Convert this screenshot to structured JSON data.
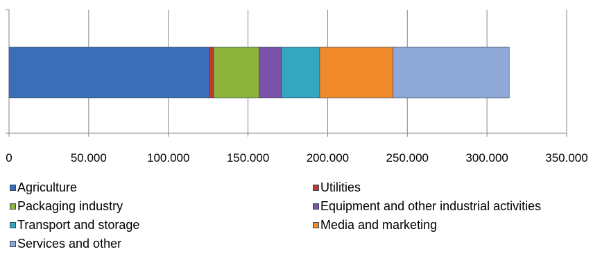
{
  "chart_data": {
    "type": "bar",
    "orientation": "horizontal",
    "stacked": true,
    "categories": [
      ""
    ],
    "xlim": [
      0,
      350000
    ],
    "xticks": [
      0,
      50000,
      100000,
      150000,
      200000,
      250000,
      300000,
      350000
    ],
    "xtick_labels": [
      "0",
      "50.000",
      "100.000",
      "150.000",
      "200.000",
      "250.000",
      "300.000",
      "350.000"
    ],
    "grid": "vertical",
    "legend_position": "bottom",
    "series": [
      {
        "name": "Agriculture",
        "values": [
          126000
        ],
        "color": "#3a6fb8"
      },
      {
        "name": "Utilities",
        "values": [
          2500
        ],
        "color": "#c0392b"
      },
      {
        "name": "Packaging industry",
        "values": [
          28500
        ],
        "color": "#8db33a"
      },
      {
        "name": "Equipment and other industrial activities",
        "values": [
          14000
        ],
        "color": "#7b52a8"
      },
      {
        "name": "Transport and storage",
        "values": [
          24000
        ],
        "color": "#34a7c0"
      },
      {
        "name": "Media and marketing",
        "values": [
          46000
        ],
        "color": "#f18a2b"
      },
      {
        "name": "Services and other",
        "values": [
          73000
        ],
        "color": "#8fa9d6"
      }
    ]
  }
}
